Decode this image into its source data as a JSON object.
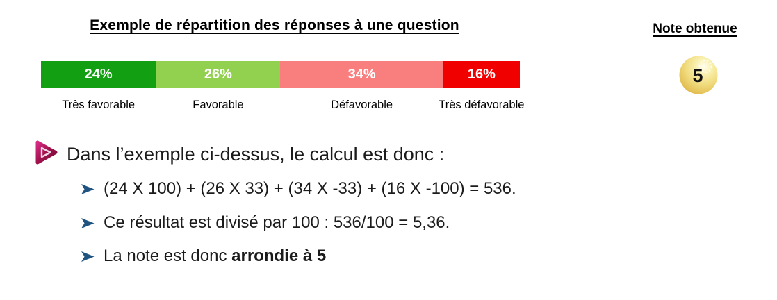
{
  "title": "Exemple de répartition des réponses à une question",
  "note": {
    "header": "Note obtenue",
    "value": "5",
    "ball_color": "#F0DA7C"
  },
  "chart_data": {
    "type": "bar",
    "variant": "stacked-horizontal",
    "title": "Exemple de répartition des réponses à une question",
    "categories": [
      "Très favorable",
      "Favorable",
      "Défavorable",
      "Très défavorable"
    ],
    "values": [
      24,
      26,
      34,
      16
    ],
    "unit": "%",
    "segment_labels": [
      "24%",
      "26%",
      "34%",
      "16%"
    ],
    "colors": [
      "#12A012",
      "#92D04F",
      "#F97F7F",
      "#F10000"
    ],
    "value_label_color": "#FFFFFF",
    "legend_position": "below-bar",
    "grid": false,
    "axes": "none",
    "derived_score": 5
  },
  "explanation": {
    "intro": "Dans l’exemple ci-dessus, le calcul est donc :",
    "steps": [
      {
        "text": "(24 X 100) + (26 X 33) + (34 X -33) + (16 X -100) = 536.",
        "bold": ""
      },
      {
        "text": "Ce résultat est divisé par 100 : 536/100 = 5,36.",
        "bold": ""
      },
      {
        "text": "La note est donc ",
        "bold": "arrondie à 5"
      }
    ]
  },
  "icons": {
    "intro_bullet": "magenta-play-arrow-icon",
    "step_bullet": "blue-arrowhead-icon",
    "score_ball": "gold-sphere-icon"
  }
}
